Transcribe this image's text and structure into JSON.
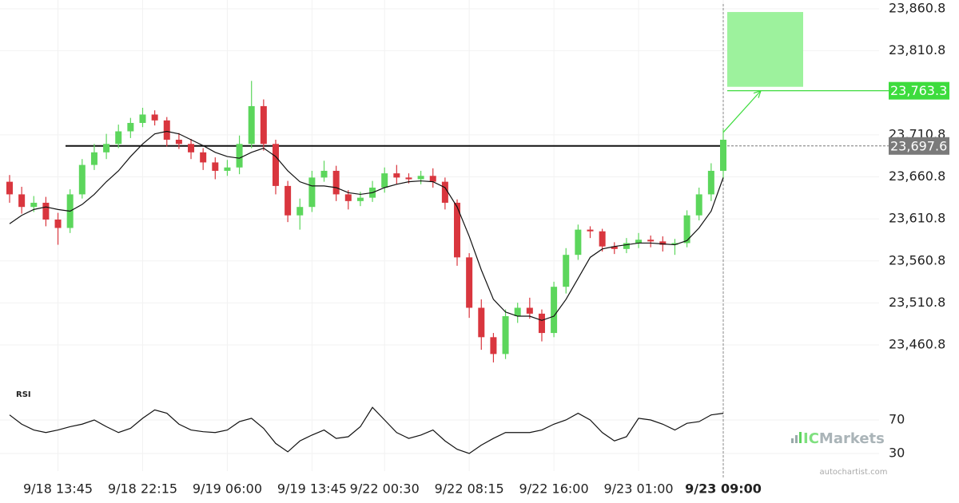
{
  "chart_data": [
    {
      "type": "candlestick",
      "xticks": [
        {
          "value": 4,
          "label": "9/18 13:45"
        },
        {
          "value": 11,
          "label": "9/18 22:15"
        },
        {
          "value": 18,
          "label": "9/19 06:00"
        },
        {
          "value": 25,
          "label": "9/19 13:45"
        },
        {
          "value": 31,
          "label": "9/22 00:30"
        },
        {
          "value": 38,
          "label": "9/22 08:15"
        },
        {
          "value": 45,
          "label": "9/22 16:00"
        },
        {
          "value": 52,
          "label": "9/23 01:00"
        },
        {
          "value": 59,
          "label": "9/23 09:00"
        }
      ],
      "ylim": [
        23424.7,
        23871.3
      ],
      "yticks": [
        {
          "value": 23860.8,
          "label": "23,860.8"
        },
        {
          "value": 23810.8,
          "label": "23,810.8"
        },
        {
          "value": 23710.8,
          "label": "23,710.8"
        },
        {
          "value": 23660.8,
          "label": "23,660.8"
        },
        {
          "value": 23610.8,
          "label": "23,610.8"
        },
        {
          "value": 23560.8,
          "label": "23,560.8"
        },
        {
          "value": 23510.8,
          "label": "23,510.8"
        },
        {
          "value": 23460.8,
          "label": "23,460.8"
        }
      ],
      "grid": true,
      "up_color": "#5cd65c",
      "down_color": "#d9363e",
      "open": [
        23655,
        23640,
        23625,
        23630,
        23610,
        23600,
        23640,
        23675,
        23690,
        23700,
        23715,
        23725,
        23735,
        23728,
        23705,
        23700,
        23690,
        23678,
        23668,
        23672,
        23700,
        23745,
        23700,
        23650,
        23615,
        23625,
        23660,
        23668,
        23640,
        23632,
        23636,
        23648,
        23665,
        23660,
        23658,
        23662,
        23655,
        23630,
        23565,
        23505,
        23470,
        23450,
        23495,
        23505,
        23498,
        23475,
        23530,
        23568,
        23598,
        23596,
        23578,
        23575,
        23582,
        23586,
        23584,
        23580,
        23582,
        23615,
        23640,
        23668
      ],
      "high": [
        23663,
        23649,
        23638,
        23637,
        23618,
        23646,
        23682,
        23700,
        23712,
        23723,
        23731,
        23743,
        23740,
        23732,
        23713,
        23706,
        23695,
        23684,
        23681,
        23710,
        23775,
        23753,
        23705,
        23656,
        23635,
        23668,
        23680,
        23674,
        23645,
        23643,
        23656,
        23672,
        23675,
        23665,
        23668,
        23671,
        23660,
        23634,
        23570,
        23515,
        23475,
        23503,
        23511,
        23517,
        23503,
        23536,
        23576,
        23604,
        23602,
        23599,
        23583,
        23588,
        23594,
        23591,
        23590,
        23587,
        23621,
        23648,
        23677,
        23718
      ],
      "low": [
        23630,
        23617,
        23619,
        23602,
        23580,
        23594,
        23635,
        23669,
        23682,
        23695,
        23707,
        23720,
        23722,
        23697,
        23694,
        23682,
        23669,
        23658,
        23662,
        23664,
        23695,
        23692,
        23640,
        23607,
        23598,
        23619,
        23655,
        23632,
        23622,
        23626,
        23631,
        23642,
        23652,
        23653,
        23652,
        23648,
        23622,
        23555,
        23493,
        23455,
        23440,
        23444,
        23487,
        23492,
        23465,
        23470,
        23522,
        23562,
        23588,
        23572,
        23569,
        23570,
        23576,
        23577,
        23572,
        23568,
        23577,
        23609,
        23632,
        23658
      ],
      "close": [
        23640,
        23625,
        23630,
        23610,
        23600,
        23640,
        23675,
        23690,
        23700,
        23715,
        23725,
        23735,
        23728,
        23705,
        23700,
        23690,
        23678,
        23668,
        23672,
        23700,
        23745,
        23700,
        23650,
        23615,
        23625,
        23660,
        23668,
        23640,
        23632,
        23636,
        23648,
        23665,
        23660,
        23658,
        23662,
        23655,
        23630,
        23565,
        23505,
        23470,
        23450,
        23495,
        23505,
        23498,
        23475,
        23530,
        23568,
        23598,
        23596,
        23578,
        23575,
        23582,
        23586,
        23584,
        23580,
        23582,
        23615,
        23640,
        23668,
        23705
      ],
      "moving_average": {
        "color": "#111111",
        "values": [
          23605,
          23615,
          23622,
          23625,
          23622,
          23620,
          23628,
          23640,
          23655,
          23668,
          23685,
          23700,
          23712,
          23715,
          23712,
          23705,
          23698,
          23690,
          23685,
          23683,
          23690,
          23695,
          23685,
          23668,
          23655,
          23650,
          23650,
          23648,
          23642,
          23640,
          23642,
          23648,
          23652,
          23655,
          23656,
          23655,
          23648,
          23625,
          23590,
          23550,
          23515,
          23500,
          23495,
          23495,
          23490,
          23495,
          23515,
          23540,
          23565,
          23575,
          23578,
          23580,
          23582,
          23582,
          23581,
          23580,
          23585,
          23600,
          23620,
          23660
        ]
      },
      "level": {
        "value": 23697.6,
        "label": "23,697.6",
        "color": "#111111",
        "label_color": "#7a7a7a"
      },
      "target": {
        "value": 23763.3,
        "label": "23,763.3",
        "color": "#3ddc3d"
      },
      "forecast_box": {
        "high": 23857,
        "low": 23768,
        "color": "#9df29d"
      }
    },
    {
      "type": "line",
      "title": "RSI",
      "ylim": [
        13.8,
        90
      ],
      "yticks": [
        70,
        30
      ],
      "color": "#111111",
      "values": [
        76,
        65,
        58,
        55,
        58,
        62,
        65,
        70,
        62,
        55,
        60,
        72,
        82,
        78,
        65,
        58,
        56,
        55,
        58,
        68,
        72,
        60,
        42,
        32,
        45,
        52,
        58,
        48,
        50,
        62,
        85,
        70,
        55,
        48,
        52,
        58,
        45,
        35,
        30,
        40,
        48,
        55,
        55,
        55,
        58,
        65,
        70,
        78,
        70,
        55,
        45,
        50,
        72,
        70,
        65,
        58,
        66,
        68,
        76,
        78
      ]
    }
  ],
  "watermark": {
    "brand": "IC",
    "name": "Markets"
  },
  "credit": "autochartist.com"
}
